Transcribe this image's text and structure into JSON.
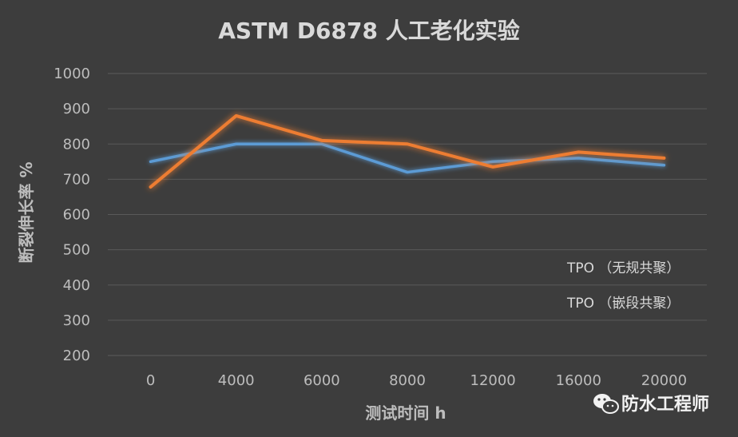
{
  "colors": {
    "background": "#3d3d3d",
    "gridline": "#5a5a5a",
    "text": "#bdbdbd",
    "series_no_block": "#5b9bd5",
    "series_block": "#ed7d31",
    "glow_block": "#f6a15a"
  },
  "watermark": {
    "icon": "wechat-icon",
    "text": "防水工程师"
  },
  "chart_data": {
    "type": "line",
    "title": "ASTM D6878 人工老化实验",
    "xlabel": "测试时间 h",
    "ylabel": "断裂伸长率 %",
    "categories": [
      "0",
      "4000",
      "6000",
      "8000",
      "12000",
      "16000",
      "20000"
    ],
    "y_ticks": [
      "200",
      "300",
      "400",
      "500",
      "600",
      "700",
      "800",
      "900",
      "1000"
    ],
    "ylim": [
      200,
      1000
    ],
    "grid": "horizontal",
    "legend_position": "right",
    "series": [
      {
        "name": "TPO （无规共聚）",
        "color": "#5b9bd5",
        "values": [
          750,
          800,
          800,
          720,
          750,
          760,
          740
        ]
      },
      {
        "name": "TPO （嵌段共聚）",
        "color": "#ed7d31",
        "values": [
          678,
          880,
          810,
          800,
          735,
          777,
          760
        ]
      }
    ]
  }
}
